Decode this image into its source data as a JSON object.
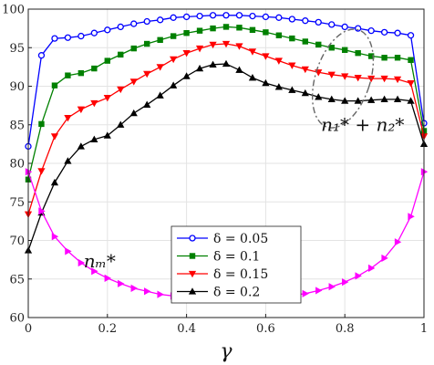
{
  "chart_data": {
    "type": "line",
    "xlabel": "γ",
    "ylabel": "",
    "xlim": [
      0,
      1
    ],
    "ylim": [
      60,
      100
    ],
    "xticks": [
      0,
      0.2,
      0.4,
      0.6,
      0.8,
      1
    ],
    "xtick_labels": [
      "0",
      "0.2",
      "0.4",
      "0.6",
      "0.8",
      "1"
    ],
    "yticks": [
      60,
      65,
      70,
      75,
      80,
      85,
      90,
      95,
      100
    ],
    "ytick_labels": [
      "60",
      "65",
      "70",
      "75",
      "80",
      "85",
      "90",
      "95",
      "100"
    ],
    "grid": true,
    "legend_position": "lower-center",
    "x": [
      0,
      0.0333,
      0.0667,
      0.1,
      0.1333,
      0.1667,
      0.2,
      0.2333,
      0.2667,
      0.3,
      0.3333,
      0.3667,
      0.4,
      0.4333,
      0.4667,
      0.5,
      0.5333,
      0.5667,
      0.6,
      0.6333,
      0.6667,
      0.7,
      0.7333,
      0.7667,
      0.8,
      0.8333,
      0.8667,
      0.9,
      0.9333,
      0.9667,
      1
    ],
    "series": [
      {
        "name": "δ = 0.05",
        "color": "#0000ff",
        "marker": "circle",
        "values": [
          82.2,
          94.0,
          96.2,
          96.3,
          96.5,
          96.9,
          97.3,
          97.7,
          98.1,
          98.4,
          98.6,
          98.9,
          99.0,
          99.1,
          99.2,
          99.2,
          99.2,
          99.1,
          99.0,
          98.9,
          98.7,
          98.5,
          98.3,
          98.0,
          97.7,
          97.5,
          97.2,
          97.0,
          96.9,
          96.6,
          85.2
        ]
      },
      {
        "name": "δ = 0.1",
        "color": "#008000",
        "marker": "square",
        "values": [
          77.9,
          85.1,
          90.1,
          91.4,
          91.7,
          92.3,
          93.3,
          94.1,
          94.9,
          95.5,
          96.0,
          96.5,
          96.9,
          97.2,
          97.5,
          97.7,
          97.6,
          97.3,
          97.0,
          96.6,
          96.2,
          95.8,
          95.4,
          95.0,
          94.7,
          94.3,
          93.9,
          93.7,
          93.7,
          93.4,
          84.2
        ]
      },
      {
        "name": "δ = 0.15",
        "color": "#ff0000",
        "marker": "triangle-down",
        "values": [
          73.4,
          79.0,
          83.5,
          85.9,
          87.0,
          87.8,
          88.5,
          89.6,
          90.6,
          91.6,
          92.5,
          93.5,
          94.3,
          94.9,
          95.4,
          95.5,
          95.2,
          94.5,
          93.9,
          93.3,
          92.7,
          92.2,
          91.8,
          91.5,
          91.3,
          91.1,
          91.0,
          91.0,
          90.9,
          90.4,
          83.5
        ]
      },
      {
        "name": "δ = 0.2",
        "color": "#000000",
        "marker": "triangle-up",
        "values": [
          68.7,
          73.6,
          77.5,
          80.3,
          82.2,
          83.1,
          83.6,
          85.0,
          86.5,
          87.6,
          88.8,
          90.1,
          91.3,
          92.3,
          92.8,
          92.9,
          92.1,
          91.1,
          90.4,
          89.9,
          89.5,
          89.1,
          88.6,
          88.3,
          88.1,
          88.1,
          88.2,
          88.3,
          88.3,
          88.1,
          82.5
        ]
      },
      {
        "name": "",
        "color": "#ff00ff",
        "marker": "triangle-right",
        "values": [
          78.9,
          73.8,
          70.5,
          68.6,
          67.1,
          66.0,
          65.1,
          64.4,
          63.8,
          63.4,
          63.0,
          62.8,
          62.7,
          62.6,
          62.6,
          62.6,
          62.6,
          62.6,
          62.6,
          62.7,
          62.9,
          63.1,
          63.5,
          64.0,
          64.6,
          65.4,
          66.4,
          67.7,
          69.8,
          73.1,
          78.9
        ]
      }
    ],
    "annotations": [
      {
        "text": "n₁* + n₂*",
        "near_x": 0.74,
        "near_y": 84.2
      },
      {
        "text": "nₘ*",
        "near_x": 0.14,
        "near_y": 66.5
      }
    ],
    "ellipse_center": {
      "x": 0.795,
      "y": 91.0
    }
  }
}
